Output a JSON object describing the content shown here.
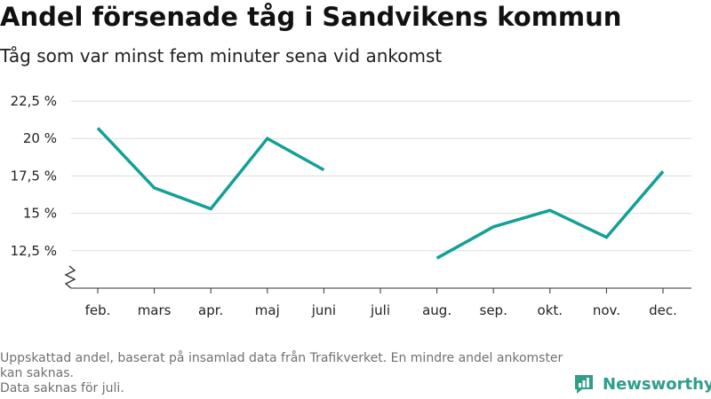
{
  "header": {
    "title": "Andel försenade tåg i Sandvikens kommun",
    "subtitle": "Tåg som var minst fem minuter sena vid ankomst"
  },
  "footer": {
    "note_line1": "Uppskattad andel, baserat på insamlad data från Trafikverket. En mindre andel ankomster kan saknas.",
    "note_line2": "Data saknas för juli."
  },
  "brand": {
    "name": "Newsworthy",
    "logo_icon": "newsworthy-logo-icon"
  },
  "colors": {
    "line": "#13a096",
    "grid": "#dddddd",
    "axis": "#333333",
    "brand": "#2e9e89"
  },
  "chart_data": {
    "type": "line",
    "title": "Andel försenade tåg i Sandvikens kommun",
    "subtitle": "Tåg som var minst fem minuter sena vid ankomst",
    "categories": [
      "feb.",
      "mars",
      "apr.",
      "maj",
      "juni",
      "juli",
      "aug.",
      "sep.",
      "okt.",
      "nov.",
      "dec."
    ],
    "series": [
      {
        "values": [
          20.7,
          16.7,
          15.3,
          20.0,
          17.9,
          null,
          12.0,
          14.1,
          15.2,
          13.4,
          17.8
        ]
      }
    ],
    "y_ticks": [
      12.5,
      15,
      17.5,
      20,
      22.5
    ],
    "y_tick_labels": [
      "12,5 %",
      "15 %",
      "17,5 %",
      "20 %",
      "22,5 %"
    ],
    "ylim": [
      10,
      22.5
    ],
    "y_axis_break": true,
    "grid": true,
    "legend": "none"
  }
}
